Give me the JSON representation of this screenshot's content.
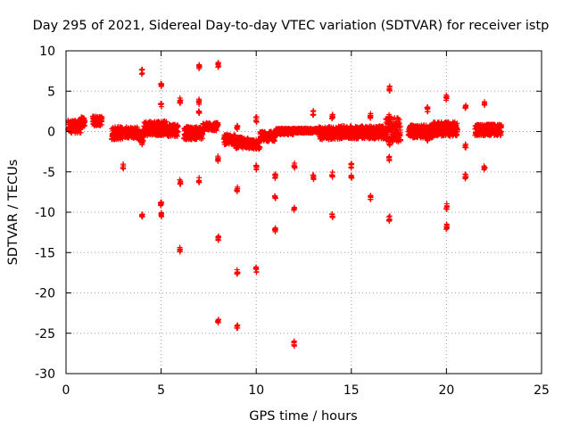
{
  "chart_data": {
    "type": "scatter",
    "title": "Day 295 of 2021, Sidereal Day-to-day VTEC variation (SDTVAR) for receiver istp",
    "xlabel": "GPS time / hours",
    "ylabel": "SDTVAR / TECUs",
    "xlim": [
      0,
      25
    ],
    "ylim": [
      -30,
      10
    ],
    "xticks": [
      "0",
      "5",
      "10",
      "15",
      "20",
      "25"
    ],
    "yticks": [
      "10",
      "5",
      "0",
      "-5",
      "-10",
      "-15",
      "-20",
      "-25",
      "-30"
    ],
    "grid": true,
    "marker": "+",
    "color": "#ff0000",
    "series": [
      {
        "name": "SDTVAR",
        "bands": [
          {
            "x_start": 0.1,
            "x_end": 0.8,
            "y_center": 0.6,
            "y_spread": 0.8
          },
          {
            "x_start": 0.8,
            "x_end": 1.0,
            "y_center": 1.2,
            "y_spread": 0.6
          },
          {
            "x_start": 1.4,
            "x_end": 1.9,
            "y_center": 1.3,
            "y_spread": 0.6
          },
          {
            "x_start": 2.4,
            "x_end": 3.0,
            "y_center": -0.2,
            "y_spread": 0.8
          },
          {
            "x_start": 3.1,
            "x_end": 3.8,
            "y_center": -0.1,
            "y_spread": 0.7
          },
          {
            "x_start": 3.8,
            "x_end": 4.1,
            "y_center": -0.6,
            "y_spread": 0.6
          },
          {
            "x_start": 4.1,
            "x_end": 5.3,
            "y_center": 0.4,
            "y_spread": 0.9
          },
          {
            "x_start": 5.3,
            "x_end": 5.9,
            "y_center": 0.2,
            "y_spread": 0.8
          },
          {
            "x_start": 6.2,
            "x_end": 7.2,
            "y_center": -0.2,
            "y_spread": 0.8
          },
          {
            "x_start": 7.2,
            "x_end": 8.0,
            "y_center": 0.6,
            "y_spread": 0.5
          },
          {
            "x_start": 8.3,
            "x_end": 8.9,
            "y_center": -1.0,
            "y_spread": 0.6
          },
          {
            "x_start": 8.9,
            "x_end": 9.6,
            "y_center": -1.4,
            "y_spread": 0.7
          },
          {
            "x_start": 9.6,
            "x_end": 10.2,
            "y_center": -1.6,
            "y_spread": 0.6
          },
          {
            "x_start": 10.2,
            "x_end": 11.0,
            "y_center": -0.6,
            "y_spread": 0.6
          },
          {
            "x_start": 11.0,
            "x_end": 12.0,
            "y_center": 0.0,
            "y_spread": 0.4
          },
          {
            "x_start": 12.0,
            "x_end": 13.3,
            "y_center": 0.1,
            "y_spread": 0.3
          },
          {
            "x_start": 13.3,
            "x_end": 14.3,
            "y_center": -0.2,
            "y_spread": 0.8
          },
          {
            "x_start": 14.3,
            "x_end": 15.3,
            "y_center": -0.1,
            "y_spread": 0.8
          },
          {
            "x_start": 15.3,
            "x_end": 16.8,
            "y_center": -0.1,
            "y_spread": 0.8
          },
          {
            "x_start": 16.8,
            "x_end": 17.6,
            "y_center": 0.2,
            "y_spread": 1.5
          },
          {
            "x_start": 18.0,
            "x_end": 19.3,
            "y_center": 0.0,
            "y_spread": 0.8
          },
          {
            "x_start": 19.3,
            "x_end": 20.6,
            "y_center": 0.3,
            "y_spread": 0.9
          },
          {
            "x_start": 21.5,
            "x_end": 22.9,
            "y_center": 0.2,
            "y_spread": 0.7
          }
        ],
        "clusters": [
          {
            "x": 4.0,
            "y": 7.4
          },
          {
            "x": 4.0,
            "y": -1.5
          },
          {
            "x": 4.0,
            "y": -10.5
          },
          {
            "x": 3.0,
            "y": -4.3
          },
          {
            "x": 5.0,
            "y": 5.7
          },
          {
            "x": 5.0,
            "y": 3.3
          },
          {
            "x": 5.0,
            "y": -8.9
          },
          {
            "x": 5.0,
            "y": -10.3
          },
          {
            "x": 6.0,
            "y": 3.8
          },
          {
            "x": 6.0,
            "y": -6.3
          },
          {
            "x": 6.0,
            "y": -14.6
          },
          {
            "x": 7.0,
            "y": 8.0
          },
          {
            "x": 7.0,
            "y": 3.7
          },
          {
            "x": 7.0,
            "y": 2.6
          },
          {
            "x": 7.0,
            "y": -6.0
          },
          {
            "x": 8.0,
            "y": 8.3
          },
          {
            "x": 8.0,
            "y": -3.4
          },
          {
            "x": 8.0,
            "y": -13.2
          },
          {
            "x": 8.0,
            "y": -23.4
          },
          {
            "x": 9.0,
            "y": 0.5
          },
          {
            "x": 9.0,
            "y": -7.1
          },
          {
            "x": 9.0,
            "y": -17.4
          },
          {
            "x": 9.0,
            "y": -24.1
          },
          {
            "x": 10.0,
            "y": 1.5
          },
          {
            "x": 10.0,
            "y": -4.5
          },
          {
            "x": 10.0,
            "y": -17.1
          },
          {
            "x": 11.0,
            "y": -5.6
          },
          {
            "x": 11.0,
            "y": -8.0
          },
          {
            "x": 11.0,
            "y": -12.1
          },
          {
            "x": 12.0,
            "y": -4.2
          },
          {
            "x": 12.0,
            "y": -9.5
          },
          {
            "x": 12.0,
            "y": -26.3
          },
          {
            "x": 13.0,
            "y": 2.3
          },
          {
            "x": 13.0,
            "y": -5.6
          },
          {
            "x": 14.0,
            "y": 1.8
          },
          {
            "x": 14.0,
            "y": -5.3
          },
          {
            "x": 14.0,
            "y": -10.4
          },
          {
            "x": 15.0,
            "y": -4.2
          },
          {
            "x": 15.0,
            "y": -5.5
          },
          {
            "x": 16.0,
            "y": 1.9
          },
          {
            "x": 16.0,
            "y": -8.1
          },
          {
            "x": 17.0,
            "y": 5.3
          },
          {
            "x": 17.0,
            "y": 1.8
          },
          {
            "x": 17.0,
            "y": -1.5
          },
          {
            "x": 17.0,
            "y": -3.3
          },
          {
            "x": 17.0,
            "y": -10.8
          },
          {
            "x": 19.0,
            "y": 2.8
          },
          {
            "x": 19.0,
            "y": -1.0
          },
          {
            "x": 20.0,
            "y": 4.2
          },
          {
            "x": 20.0,
            "y": -9.3
          },
          {
            "x": 20.0,
            "y": -11.8
          },
          {
            "x": 21.0,
            "y": 3.2
          },
          {
            "x": 21.0,
            "y": -1.8
          },
          {
            "x": 21.0,
            "y": -5.6
          },
          {
            "x": 22.0,
            "y": 3.5
          },
          {
            "x": 22.0,
            "y": -4.4
          }
        ]
      }
    ]
  }
}
